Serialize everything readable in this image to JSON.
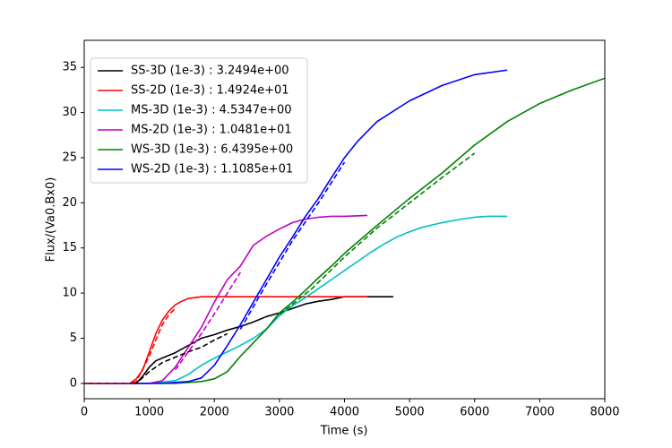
{
  "chart_data": {
    "type": "line",
    "xlabel": "Time (s)",
    "ylabel": "Flux/(Va0.Bx0)",
    "xlim": [
      0,
      8000
    ],
    "ylim": [
      -1.7,
      38
    ],
    "xticks": [
      0,
      1000,
      2000,
      3000,
      4000,
      5000,
      6000,
      7000,
      8000
    ],
    "yticks": [
      0,
      5,
      10,
      15,
      20,
      25,
      30,
      35
    ],
    "legend": "upper left",
    "series": [
      {
        "name": "SS-3D (1e-3) : 3.2494e+00",
        "color": "#000000",
        "dashed": false,
        "x": [
          0,
          800,
          900,
          1000,
          1100,
          1200,
          1400,
          1600,
          1800,
          2000,
          2200,
          2400,
          2600,
          2800,
          3000,
          3200,
          3400,
          3600,
          3800,
          4000,
          4200,
          4750
        ],
        "values": [
          0,
          0,
          0.8,
          1.8,
          2.5,
          2.8,
          3.4,
          4.2,
          5.0,
          5.4,
          5.9,
          6.3,
          6.8,
          7.4,
          7.8,
          8.3,
          8.8,
          9.1,
          9.3,
          9.6,
          9.6,
          9.6
        ]
      },
      {
        "name": "SS-2D (1e-3) : 1.4924e+01",
        "color": "#ff0000",
        "dashed": false,
        "x": [
          0,
          700,
          800,
          900,
          1000,
          1100,
          1200,
          1300,
          1400,
          1500,
          1600,
          1800,
          4350
        ],
        "values": [
          0,
          0,
          0.5,
          1.5,
          3.5,
          5.5,
          7.0,
          8.0,
          8.7,
          9.1,
          9.4,
          9.6,
          9.6
        ]
      },
      {
        "name": "MS-3D (1e-3) : 4.5347e+00",
        "color": "#00bfbf",
        "dashed": false,
        "x": [
          0,
          1000,
          1400,
          1600,
          1800,
          2000,
          2200,
          2400,
          2600,
          2800,
          3000,
          3200,
          3400,
          3600,
          3800,
          4000,
          4200,
          4400,
          4600,
          4800,
          5000,
          5200,
          5500,
          5800,
          6000,
          6200,
          6500
        ],
        "values": [
          0,
          0,
          0.3,
          1.0,
          2.0,
          2.8,
          3.5,
          4.2,
          5.0,
          6.0,
          7.5,
          8.6,
          9.5,
          10.5,
          11.5,
          12.5,
          13.5,
          14.5,
          15.4,
          16.2,
          16.8,
          17.3,
          17.8,
          18.2,
          18.4,
          18.5,
          18.5
        ]
      },
      {
        "name": "MS-2D (1e-3) : 1.0481e+01",
        "color": "#bf00bf",
        "dashed": false,
        "x": [
          0,
          1000,
          1200,
          1400,
          1600,
          1800,
          2000,
          2200,
          2400,
          2600,
          2800,
          3000,
          3200,
          3400,
          3600,
          3800,
          4000,
          4350
        ],
        "values": [
          0,
          0,
          0.3,
          1.8,
          4.0,
          6.2,
          9.0,
          11.5,
          13.0,
          15.3,
          16.3,
          17.1,
          17.8,
          18.2,
          18.4,
          18.5,
          18.5,
          18.6
        ]
      },
      {
        "name": "WS-3D (1e-3) : 6.4395e+00",
        "color": "#008000",
        "dashed": false,
        "x": [
          0,
          1400,
          1800,
          2000,
          2200,
          2400,
          2600,
          2800,
          3000,
          3200,
          3400,
          3600,
          3800,
          4000,
          4500,
          5000,
          5500,
          6000,
          6500,
          7000,
          7500,
          8000
        ],
        "values": [
          0,
          0,
          0.2,
          0.5,
          1.3,
          3.0,
          4.5,
          6.0,
          7.8,
          9.0,
          10.3,
          11.7,
          13.0,
          14.4,
          17.5,
          20.5,
          23.3,
          26.4,
          29.0,
          31.0,
          32.5,
          33.8
        ]
      },
      {
        "name": "WS-2D (1e-3) : 1.1085e+01",
        "color": "#0000ff",
        "dashed": false,
        "x": [
          0,
          1200,
          1600,
          1800,
          2000,
          2200,
          2400,
          2600,
          2800,
          3000,
          3200,
          3400,
          3600,
          3800,
          4000,
          4200,
          4500,
          5000,
          5500,
          6000,
          6500
        ],
        "values": [
          0,
          0,
          0.2,
          0.6,
          2.0,
          4.2,
          6.5,
          9.0,
          11.5,
          14.0,
          16.2,
          18.5,
          20.5,
          22.8,
          25.0,
          26.8,
          29.0,
          31.3,
          33.0,
          34.2,
          34.7
        ]
      },
      {
        "color": "#000000",
        "dashed": true,
        "x": [
          0,
          800,
          1000,
          1200,
          1400,
          1600,
          1800,
          2000,
          2200
        ],
        "values": [
          0,
          0,
          1.3,
          2.3,
          2.9,
          3.5,
          4.0,
          4.8,
          5.5
        ]
      },
      {
        "color": "#ff0000",
        "dashed": true,
        "x": [
          0,
          700,
          800,
          1000,
          1100,
          1200,
          1300,
          1400
        ],
        "values": [
          0,
          0,
          0.2,
          3.0,
          4.8,
          6.5,
          7.6,
          8.3
        ]
      },
      {
        "color": "#bf00bf",
        "dashed": true,
        "x": [
          1400,
          1600,
          1800,
          2000,
          2200,
          2400
        ],
        "values": [
          1.5,
          3.5,
          5.5,
          7.7,
          10.0,
          12.3
        ]
      },
      {
        "color": "#008000",
        "dashed": true,
        "x": [
          3000,
          3500,
          4000,
          4500,
          5000,
          5500,
          6000
        ],
        "values": [
          7.6,
          10.5,
          14.0,
          17.2,
          20.0,
          22.8,
          25.5
        ]
      },
      {
        "color": "#0000ff",
        "dashed": true,
        "x": [
          2400,
          2800,
          3200,
          3600,
          4000
        ],
        "values": [
          6.0,
          11.0,
          15.8,
          20.0,
          24.5
        ]
      }
    ]
  }
}
